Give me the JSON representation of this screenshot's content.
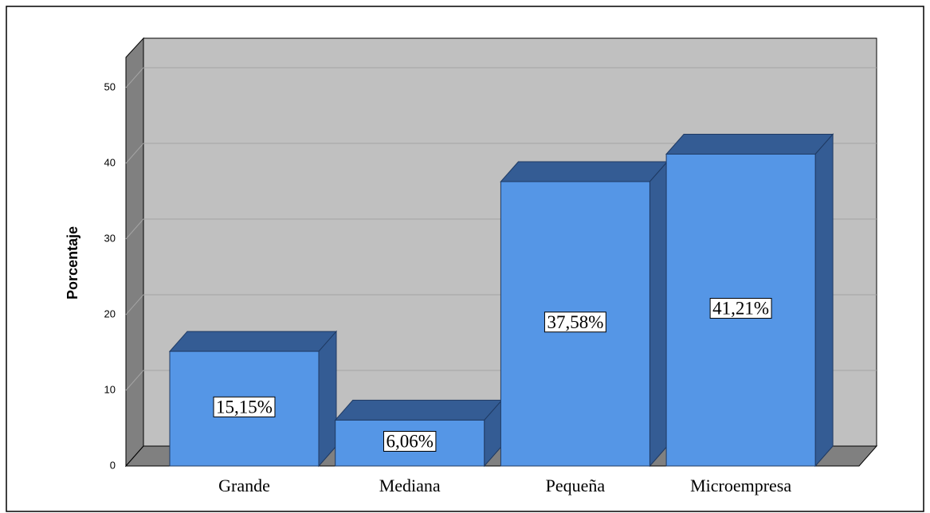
{
  "chart_data": {
    "type": "bar3d",
    "y_label": "Porcentaje",
    "categories": [
      "Grande",
      "Mediana",
      "Pequeña",
      "Microempresa"
    ],
    "values": [
      15.15,
      6.06,
      37.58,
      41.21
    ],
    "value_labels": [
      "15,15%",
      "6,06%",
      "37,58%",
      "41,21%"
    ],
    "color": "#5596e6",
    "ylim": [
      0,
      54
    ],
    "yticks": [
      0,
      10,
      20,
      30,
      40,
      50
    ],
    "grid": true
  }
}
